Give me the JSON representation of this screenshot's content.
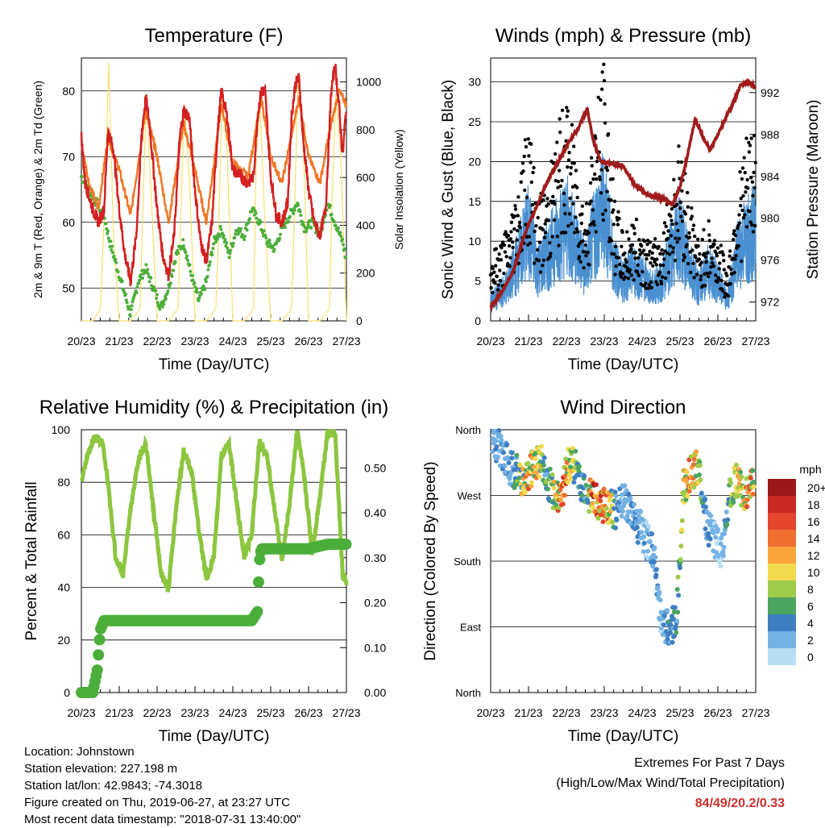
{
  "chart_data": [
    {
      "type": "line",
      "title": "Temperature (F)",
      "xlabel": "Time (Day/UTC)",
      "ylabel": "2m & 9m T (Red, Orange) & 2m Td (Green)",
      "y2label": "Solar Insolation (Yellow)",
      "x_ticks": [
        "20/23",
        "21/23",
        "22/23",
        "23/23",
        "24/23",
        "25/23",
        "26/23",
        "27/23"
      ],
      "y_ticks": [
        50,
        60,
        70,
        80
      ],
      "y2_ticks": [
        0,
        200,
        400,
        600,
        800,
        1000
      ],
      "ylim": [
        45,
        85
      ],
      "y2lim": [
        0,
        1100
      ],
      "xlim_days": [
        0,
        7
      ],
      "colors": {
        "t2m": "#d42020",
        "t9m": "#f07828",
        "td": "#4cae3a",
        "solar": "#f8e070"
      },
      "series": [
        {
          "name": "2m T",
          "x": [
            0,
            0.1,
            0.2,
            0.3,
            0.45,
            0.6,
            0.7,
            0.85,
            1,
            1.15,
            1.3,
            1.45,
            1.6,
            1.7,
            1.8,
            2,
            2.15,
            2.3,
            2.45,
            2.6,
            2.7,
            2.85,
            3,
            3.15,
            3.3,
            3.45,
            3.6,
            3.7,
            3.85,
            4,
            4.2,
            4.4,
            4.55,
            4.65,
            4.75,
            4.85,
            5,
            5.15,
            5.3,
            5.45,
            5.55,
            5.65,
            5.75,
            5.85,
            6,
            6.15,
            6.3,
            6.45,
            6.6,
            6.7,
            6.8,
            6.9,
            7
          ],
          "values": [
            73,
            66,
            64,
            62,
            60,
            62,
            74,
            71,
            62,
            55,
            51,
            58,
            74,
            79,
            75,
            62,
            55,
            52,
            58,
            73,
            77,
            76,
            65,
            57,
            54,
            60,
            74,
            80,
            76,
            68,
            67,
            66,
            67,
            76,
            80,
            80,
            67,
            61,
            60,
            63,
            76,
            81,
            82,
            73,
            65,
            60,
            58,
            62,
            80,
            84,
            78,
            70,
            78
          ]
        },
        {
          "name": "9m T",
          "x": [
            0,
            0.2,
            0.45,
            0.7,
            1,
            1.3,
            1.7,
            2,
            2.3,
            2.7,
            3,
            3.3,
            3.7,
            4,
            4.4,
            4.75,
            5,
            5.3,
            5.75,
            6,
            6.3,
            6.6,
            6.8,
            7
          ],
          "values": [
            72,
            66,
            62,
            73,
            68,
            61,
            77,
            70,
            60,
            75,
            68,
            60,
            78,
            69,
            67,
            79,
            70,
            66,
            79,
            70,
            66,
            75,
            80,
            78
          ]
        },
        {
          "name": "2m Td",
          "x": [
            0,
            0.2,
            0.4,
            0.6,
            0.75,
            0.9,
            1.1,
            1.3,
            1.5,
            1.7,
            1.9,
            2.1,
            2.3,
            2.5,
            2.7,
            2.9,
            3.1,
            3.3,
            3.5,
            3.7,
            3.9,
            4.1,
            4.3,
            4.5,
            4.7,
            4.9,
            5.1,
            5.3,
            5.5,
            5.7,
            5.9,
            6.1,
            6.3,
            6.5,
            6.7,
            6.9,
            7
          ],
          "values": [
            67,
            65,
            63,
            61,
            57,
            54,
            50,
            46,
            51,
            53,
            50,
            47,
            50,
            55,
            57,
            52,
            48,
            51,
            57,
            59,
            55,
            59,
            58,
            62,
            60,
            57,
            56,
            59,
            61,
            63,
            59,
            60,
            58,
            63,
            60,
            57,
            54
          ]
        },
        {
          "name": "Solar",
          "x": [
            0,
            0.3,
            0.5,
            0.62,
            0.72,
            0.85,
            1,
            1.3,
            1.55,
            1.62,
            1.72,
            1.85,
            2,
            2.3,
            2.55,
            2.62,
            2.72,
            2.85,
            3,
            3.3,
            3.55,
            3.62,
            3.72,
            3.85,
            4,
            4.3,
            4.55,
            4.62,
            4.72,
            4.85,
            5,
            5.3,
            5.55,
            5.62,
            5.72,
            5.85,
            6,
            6.3,
            6.55,
            6.62,
            6.72,
            6.85,
            7
          ],
          "values": [
            0,
            0,
            50,
            500,
            1080,
            350,
            0,
            0,
            50,
            450,
            950,
            500,
            0,
            0,
            50,
            400,
            900,
            600,
            0,
            0,
            50,
            350,
            950,
            700,
            0,
            0,
            50,
            700,
            900,
            400,
            0,
            0,
            50,
            400,
            1000,
            800,
            0,
            0,
            50,
            500,
            950,
            700,
            0
          ]
        }
      ]
    },
    {
      "type": "scatter",
      "title": "Winds (mph) & Pressure (mb)",
      "xlabel": "Time (Day/UTC)",
      "ylabel": "Sonic Wind & Gust (Blue, Black)",
      "y2label": "Station Pressure (Maroon)",
      "x_ticks": [
        "20/23",
        "21/23",
        "22/23",
        "23/23",
        "24/23",
        "25/23",
        "26/23",
        "27/23"
      ],
      "y_ticks": [
        0,
        5,
        10,
        15,
        20,
        25,
        30
      ],
      "y2_ticks": [
        972,
        976,
        980,
        984,
        988,
        992
      ],
      "ylim": [
        0,
        33
      ],
      "y2lim": [
        970.2,
        995.3
      ],
      "colors": {
        "wind": "#4a90d0",
        "gust": "#000000",
        "pressure": "#a01c1c"
      },
      "series": [
        {
          "name": "Wind",
          "x": [
            0,
            0.25,
            0.5,
            0.75,
            1,
            1.25,
            1.5,
            1.75,
            2,
            2.25,
            2.5,
            2.75,
            3,
            3.25,
            3.5,
            3.75,
            4,
            4.25,
            4.5,
            4.75,
            5,
            5.25,
            5.5,
            5.75,
            6,
            6.25,
            6.5,
            6.75,
            7
          ],
          "values": [
            3,
            4,
            6,
            10,
            14,
            8,
            10,
            13,
            15,
            12,
            8,
            14,
            18,
            9,
            6,
            8,
            7,
            5,
            6,
            10,
            13,
            9,
            5,
            8,
            6,
            3,
            10,
            13,
            14
          ]
        },
        {
          "name": "Gust",
          "x": [
            0,
            0.25,
            0.5,
            0.75,
            1,
            1.25,
            1.5,
            1.75,
            2,
            2.25,
            2.5,
            2.75,
            3,
            3.25,
            3.5,
            3.75,
            4,
            4.25,
            4.5,
            4.75,
            5,
            5.25,
            5.5,
            5.75,
            6,
            6.25,
            6.5,
            6.75,
            7
          ],
          "values": [
            8,
            9,
            12,
            17,
            24,
            14,
            16,
            22,
            26,
            20,
            13,
            24,
            30,
            15,
            10,
            12,
            11,
            9,
            10,
            16,
            21,
            15,
            9,
            12,
            10,
            6,
            16,
            21,
            24
          ]
        },
        {
          "name": "Pressure",
          "x": [
            0,
            0.3,
            0.6,
            0.9,
            1.2,
            1.5,
            1.8,
            2.1,
            2.3,
            2.55,
            2.7,
            2.9,
            3.2,
            3.5,
            3.8,
            4.1,
            4.4,
            4.6,
            4.8,
            5,
            5.2,
            5.4,
            5.6,
            5.8,
            6,
            6.2,
            6.4,
            6.6,
            6.8,
            7
          ],
          "values": [
            971.5,
            973,
            975,
            978.5,
            981,
            983.5,
            985.5,
            987.5,
            988.5,
            990.5,
            987.5,
            985.5,
            985.2,
            985,
            983.2,
            982.3,
            982,
            981.8,
            981.3,
            983,
            986,
            989.5,
            987.8,
            986.5,
            988,
            989.5,
            991,
            992.7,
            993,
            992.5
          ]
        }
      ]
    },
    {
      "type": "line",
      "title": "Relative Humidity (%) & Precipitation (in)",
      "xlabel": "Time (Day/UTC)",
      "ylabel": "Percent & Total Rainfall",
      "x_ticks": [
        "20/23",
        "21/23",
        "22/23",
        "23/23",
        "24/23",
        "25/23",
        "26/23",
        "27/23"
      ],
      "y_ticks": [
        0,
        20,
        40,
        60,
        80,
        100
      ],
      "y2_ticks": [
        "0.00",
        "0.10",
        "0.20",
        "0.30",
        "0.40",
        "0.50"
      ],
      "ylim": [
        0,
        100
      ],
      "y2lim": [
        0,
        0.585
      ],
      "colors": {
        "rh": "#8cc63f",
        "precip": "#4cae3a"
      },
      "series": [
        {
          "name": "RH",
          "x": [
            0,
            0.2,
            0.35,
            0.55,
            0.7,
            0.9,
            1.1,
            1.3,
            1.5,
            1.7,
            1.9,
            2.1,
            2.3,
            2.5,
            2.7,
            2.9,
            3.1,
            3.3,
            3.5,
            3.7,
            3.9,
            4.1,
            4.3,
            4.5,
            4.7,
            4.9,
            5.1,
            5.3,
            5.5,
            5.7,
            5.9,
            6.1,
            6.3,
            6.5,
            6.7,
            6.9,
            7
          ],
          "values": [
            80,
            93,
            97,
            96,
            80,
            52,
            45,
            70,
            88,
            95,
            70,
            46,
            39,
            70,
            92,
            85,
            62,
            43,
            52,
            90,
            95,
            72,
            52,
            60,
            96,
            90,
            70,
            50,
            72,
            100,
            80,
            53,
            75,
            99,
            99,
            45,
            42
          ]
        },
        {
          "name": "Precipitation",
          "x": [
            0,
            0.3,
            0.42,
            0.5,
            0.6,
            1,
            2,
            3,
            4,
            4.5,
            4.65,
            4.7,
            4.75,
            5,
            6,
            6.5,
            7
          ],
          "values": [
            0,
            0,
            0.05,
            0.14,
            0.16,
            0.16,
            0.16,
            0.16,
            0.16,
            0.16,
            0.18,
            0.29,
            0.32,
            0.32,
            0.32,
            0.33,
            0.33
          ]
        }
      ]
    },
    {
      "type": "scatter",
      "title": "Wind Direction",
      "xlabel": "Time (Day/UTC)",
      "ylabel": "Direction (Colored By Speed)",
      "x_ticks": [
        "20/23",
        "21/23",
        "22/23",
        "23/23",
        "24/23",
        "25/23",
        "26/23",
        "27/23"
      ],
      "y_ticks": [
        "North",
        "West",
        "South",
        "East",
        "North"
      ],
      "legend_title": "mph",
      "legend_labels": [
        "20+",
        "18",
        "16",
        "14",
        "12",
        "10",
        "8",
        "6",
        "4",
        "2",
        "0"
      ],
      "legend_colors": [
        "#9c1717",
        "#c92a23",
        "#e3452d",
        "#f06e30",
        "#f9a43b",
        "#f3d94e",
        "#9ecb4a",
        "#4aa560",
        "#3e7fc2",
        "#74b2e4",
        "#b6dff4"
      ],
      "series": [
        {
          "name": "Direction",
          "x": [
            0.1,
            0.3,
            0.5,
            0.7,
            0.9,
            1.1,
            1.3,
            1.5,
            1.7,
            1.9,
            2.1,
            2.3,
            2.5,
            2.7,
            2.9,
            3.1,
            3.3,
            3.5,
            3.7,
            3.9,
            4.1,
            4.3,
            4.5,
            4.7,
            4.9,
            5.1,
            5.3,
            5.5,
            5.7,
            5.9,
            6.1,
            6.3,
            6.5,
            6.7,
            6.9
          ],
          "values": [
            340,
            330,
            310,
            300,
            285,
            310,
            320,
            290,
            270,
            280,
            320,
            300,
            275,
            265,
            260,
            255,
            250,
            270,
            240,
            230,
            210,
            190,
            100,
            90,
            95,
            280,
            300,
            310,
            230,
            210,
            190,
            270,
            290,
            275,
            280
          ],
          "speeds": [
            3,
            4,
            5,
            7,
            12,
            13,
            10,
            6,
            12,
            16,
            14,
            6,
            5,
            17,
            16,
            14,
            5,
            3,
            4,
            4,
            3,
            4,
            3,
            5,
            6,
            11,
            14,
            9,
            4,
            3,
            2,
            8,
            9,
            13,
            14
          ]
        }
      ]
    }
  ],
  "info": {
    "location": "Location: Johnstown",
    "elevation": "Station elevation: 227.198 m",
    "latlon": "Station lat/lon: 42.9843; -74.3018",
    "created": "Figure created on Thu, 2019-06-27, at 23:27 UTC",
    "recent": "Most recent data timestamp: \"2018-07-31 13:40:00\""
  },
  "extremes": {
    "line1": "Extremes For Past 7 Days",
    "line2": "(High/Low/Max Wind/Total Precipitation)",
    "values": "84/49/20.2/0.33"
  }
}
